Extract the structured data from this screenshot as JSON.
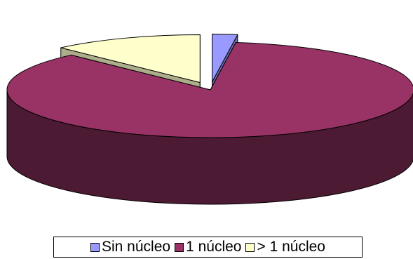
{
  "chart_data": {
    "type": "pie",
    "title": "",
    "categories": [
      "Sin núcleo",
      "1 núcleo",
      "> 1 núcleo"
    ],
    "values": [
      2,
      86,
      12
    ],
    "colors": [
      "#9999FF",
      "#993366",
      "#FFFFCC"
    ],
    "legend": "bottom",
    "exploded": true,
    "three_d": true
  }
}
